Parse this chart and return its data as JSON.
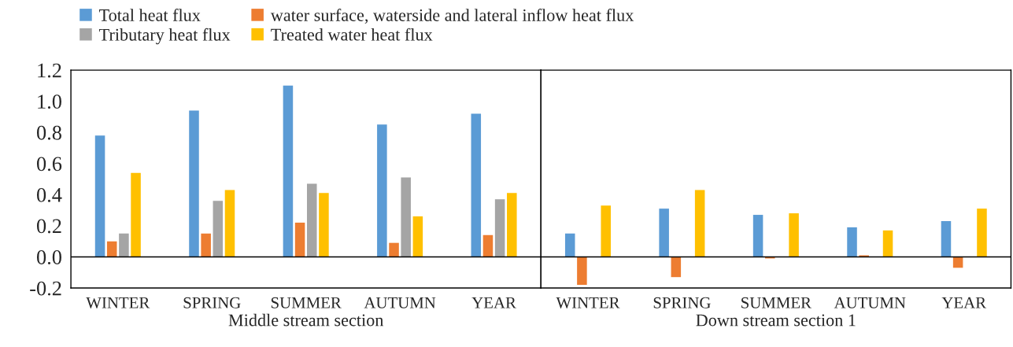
{
  "chart_data": [
    {
      "type": "bar",
      "xlabel": "Middle stream section",
      "categories": [
        "WINTER",
        "SPRING",
        "SUMMER",
        "AUTUMN",
        "YEAR"
      ],
      "series": [
        {
          "name": "Total heat flux",
          "color": "#5b9bd5",
          "values": [
            0.78,
            0.94,
            1.1,
            0.85,
            0.92
          ]
        },
        {
          "name": "water surface, waterside and lateral inflow heat flux",
          "color": "#ed7d31",
          "values": [
            0.1,
            0.15,
            0.22,
            0.09,
            0.14
          ]
        },
        {
          "name": "Tributary heat flux",
          "color": "#a5a5a5",
          "values": [
            0.15,
            0.36,
            0.47,
            0.51,
            0.37
          ]
        },
        {
          "name": "Treated water heat flux",
          "color": "#ffc000",
          "values": [
            0.54,
            0.43,
            0.41,
            0.26,
            0.41
          ]
        }
      ],
      "ylim": [
        -0.2,
        1.2
      ],
      "yticks": [
        {
          "value": -0.2,
          "label": "-0.2"
        },
        {
          "value": 0,
          "label": "0.0"
        },
        {
          "value": 0.2,
          "label": "0.2"
        },
        {
          "value": 0.4,
          "label": "0.4"
        },
        {
          "value": 0.6,
          "label": "0.6"
        },
        {
          "value": 0.8,
          "label": "0.8"
        },
        {
          "value": 1.0,
          "label": "1.0"
        },
        {
          "value": 1.2,
          "label": "1.2"
        }
      ],
      "ref_lines": [
        {
          "axis": "y",
          "value": 0,
          "color": "#000000"
        }
      ],
      "legend": "top",
      "grid": false
    },
    {
      "type": "bar",
      "xlabel": "Down stream section 1",
      "categories": [
        "WINTER",
        "SPRING",
        "SUMMER",
        "AUTUMN",
        "YEAR"
      ],
      "series": [
        {
          "color": "#5b9bd5",
          "values": [
            0.15,
            0.31,
            0.27,
            0.19,
            0.23
          ]
        },
        {
          "color": "#ed7d31",
          "values": [
            -0.18,
            -0.13,
            -0.01,
            0.01,
            -0.07
          ]
        },
        {
          "color": "#a5a5a5",
          "values": [
            null,
            null,
            null,
            null,
            null
          ]
        },
        {
          "color": "#ffc000",
          "values": [
            0.33,
            0.43,
            0.28,
            0.17,
            0.31
          ]
        }
      ],
      "ylim": [
        -0.2,
        1.2
      ],
      "ref_lines": [
        {
          "axis": "y",
          "value": 0,
          "color": "#000000"
        }
      ],
      "tick_labels": "x",
      "grid": false
    }
  ]
}
